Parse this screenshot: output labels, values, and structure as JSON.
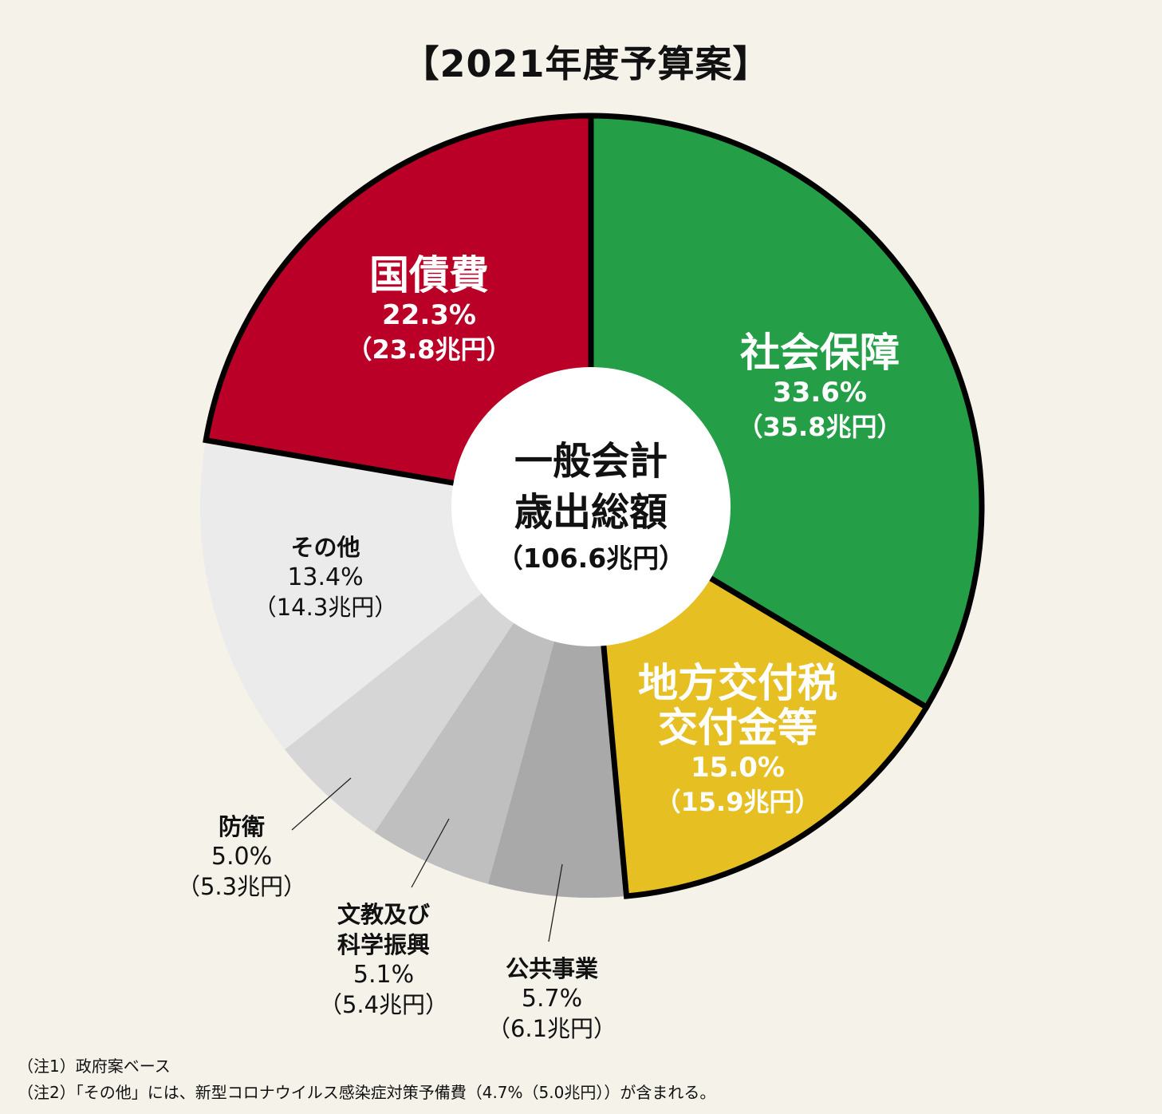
{
  "chart_data": {
    "type": "pie",
    "title": "【2021年度予算案】",
    "center_label": {
      "line1": "一般会計",
      "line2": "歳出総額",
      "amount": "（106.6兆円）"
    },
    "start": "top",
    "direction": "clockwise",
    "donut": true,
    "slices": [
      {
        "name_lines": [
          "社会保障"
        ],
        "value": 33.6,
        "percent_label": "33.6%",
        "amount_label": "（35.8兆円）",
        "color": "#259e48",
        "highlight": true
      },
      {
        "name_lines": [
          "地方交付税",
          "交付金等"
        ],
        "value": 15.0,
        "percent_label": "15.0%",
        "amount_label": "（15.9兆円）",
        "color": "#e6bf22",
        "highlight": true
      },
      {
        "name_lines": [
          "公共事業"
        ],
        "value": 5.7,
        "percent_label": "5.7%",
        "amount_label": "（6.1兆円）",
        "color": "#a9a9a9",
        "highlight": false
      },
      {
        "name_lines": [
          "文教及び",
          "科学振興"
        ],
        "value": 5.1,
        "percent_label": "5.1%",
        "amount_label": "（5.4兆円）",
        "color": "#bfbfbf",
        "highlight": false
      },
      {
        "name_lines": [
          "防衛"
        ],
        "value": 5.0,
        "percent_label": "5.0%",
        "amount_label": "（5.3兆円）",
        "color": "#d6d6d6",
        "highlight": false
      },
      {
        "name_lines": [
          "その他"
        ],
        "value": 13.4,
        "percent_label": "13.4%",
        "amount_label": "（14.3兆円）",
        "color": "#ebebeb",
        "highlight": false
      },
      {
        "name_lines": [
          "国債費"
        ],
        "value": 22.3,
        "percent_label": "22.3%",
        "amount_label": "（23.8兆円）",
        "color": "#bb0027",
        "highlight": true
      }
    ]
  },
  "notes": [
    "（注1）政府案ベース",
    "（注2）「その他」には、新型コロナウイルス感染症対策予備費（4.7%（5.0兆円））が含まれる。"
  ]
}
